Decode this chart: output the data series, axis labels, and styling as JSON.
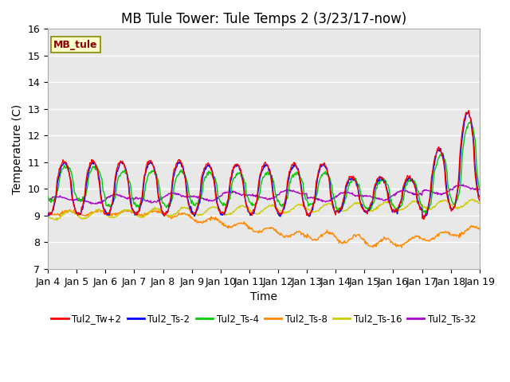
{
  "title": "MB Tule Tower: Tule Temps 2 (3/23/17-now)",
  "xlabel": "Time",
  "ylabel": "Temperature (C)",
  "ylim": [
    7.0,
    16.0
  ],
  "yticks": [
    7.0,
    8.0,
    9.0,
    10.0,
    11.0,
    12.0,
    13.0,
    14.0,
    15.0,
    16.0
  ],
  "xtick_labels": [
    "Jan 4",
    "Jan 5",
    "Jan 6",
    "Jan 7",
    "Jan 8",
    "Jan 9",
    "Jan 10",
    "Jan 11",
    "Jan 12",
    "Jan 13",
    "Jan 14",
    "Jan 15",
    "Jan 16",
    "Jan 17",
    "Jan 18",
    "Jan 19"
  ],
  "series_colors": {
    "Tul2_Tw+2": "#ff0000",
    "Tul2_Ts-2": "#0000ff",
    "Tul2_Ts-4": "#00cc00",
    "Tul2_Ts-8": "#ff8800",
    "Tul2_Ts-16": "#cccc00",
    "Tul2_Ts-32": "#aa00cc"
  },
  "legend_label": "MB_tule",
  "plot_bg_color": "#e8e8e8",
  "title_fontsize": 12,
  "axis_fontsize": 10,
  "tick_fontsize": 9
}
